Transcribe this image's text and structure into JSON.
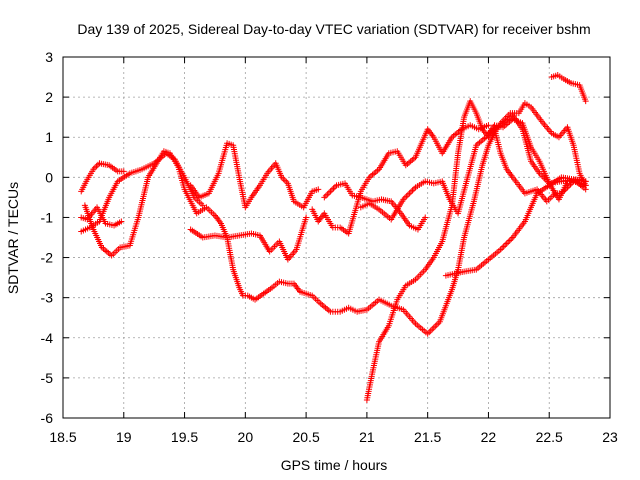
{
  "chart_data": {
    "type": "scatter",
    "title": "Day 139 of 2025, Sidereal Day-to-day VTEC variation (SDTVAR) for receiver bshm",
    "xlabel": "GPS time / hours",
    "ylabel": "SDTVAR / TECUs",
    "xlim": [
      18.5,
      23
    ],
    "ylim": [
      -6,
      3
    ],
    "xticks": [
      "18.5",
      "19",
      "19.5",
      "20",
      "20.5",
      "21",
      "21.5",
      "22",
      "22.5",
      "23"
    ],
    "yticks": [
      "-6",
      "-5",
      "-4",
      "-3",
      "-2",
      "-1",
      "0",
      "1",
      "2",
      "3"
    ],
    "grid": true,
    "marker": "+",
    "color": "#ff0000",
    "series": [
      {
        "name": "arc-1",
        "x": [
          18.65,
          18.72,
          18.8,
          18.88,
          18.95,
          19.05,
          19.15,
          19.25,
          19.35,
          19.42,
          19.5,
          19.58,
          19.65
        ],
        "y": [
          -1.35,
          -1.25,
          -1.1,
          -0.5,
          -0.1,
          0.1,
          0.2,
          0.35,
          0.6,
          0.45,
          0.0,
          -0.5,
          -0.7
        ]
      },
      {
        "name": "arc-2",
        "x": [
          18.65,
          18.7,
          18.75,
          18.8,
          18.88,
          18.95,
          19.0
        ],
        "y": [
          -0.35,
          -0.05,
          0.2,
          0.35,
          0.3,
          0.15,
          0.15
        ]
      },
      {
        "name": "arc-3",
        "x": [
          18.65,
          18.7,
          18.78,
          18.85,
          18.92,
          18.98
        ],
        "y": [
          -1.0,
          -1.05,
          -0.75,
          -1.15,
          -1.2,
          -1.1
        ]
      },
      {
        "name": "arc-4",
        "x": [
          18.68,
          18.75,
          18.82,
          18.9,
          18.97,
          19.05,
          19.12,
          19.2,
          19.28,
          19.33,
          19.38,
          19.45,
          19.5,
          19.55,
          19.6,
          19.68,
          19.75,
          19.8,
          19.85,
          19.9,
          19.95,
          19.98,
          20.02,
          20.08,
          20.15,
          20.22,
          20.28,
          20.35,
          20.4,
          20.45
        ],
        "y": [
          -0.7,
          -1.3,
          -1.75,
          -1.95,
          -1.75,
          -1.7,
          -1.0,
          0.0,
          0.4,
          0.65,
          0.6,
          0.25,
          -0.3,
          -0.6,
          -0.9,
          -0.75,
          -0.95,
          -1.15,
          -1.5,
          -2.3,
          -2.75,
          -2.95,
          -2.95,
          -3.05,
          -2.9,
          -2.75,
          -2.6,
          -2.65,
          -2.65,
          -2.85
        ]
      },
      {
        "name": "arc-5",
        "x": [
          19.55,
          19.65,
          19.75,
          19.85,
          19.95,
          20.05,
          20.12,
          20.2,
          20.28,
          20.35,
          20.42,
          20.5
        ],
        "y": [
          -1.3,
          -1.5,
          -1.45,
          -1.5,
          -1.45,
          -1.4,
          -1.45,
          -1.85,
          -1.6,
          -2.05,
          -1.8,
          -1.0
        ]
      },
      {
        "name": "arc-6",
        "x": [
          19.55,
          19.62,
          19.7,
          19.78,
          19.85,
          19.9,
          19.95,
          20.0,
          20.05,
          20.12,
          20.18,
          20.25,
          20.3,
          20.35,
          20.4,
          20.48,
          20.55,
          20.6
        ],
        "y": [
          -0.2,
          -0.5,
          -0.4,
          0.1,
          0.85,
          0.8,
          0.0,
          -0.75,
          -0.5,
          -0.2,
          0.1,
          0.35,
          0.0,
          -0.15,
          -0.6,
          -0.75,
          -0.35,
          -0.3
        ]
      },
      {
        "name": "arc-7",
        "x": [
          20.45,
          20.55,
          20.62,
          20.7,
          20.78,
          20.85,
          20.92,
          21.0,
          21.1,
          21.2,
          21.3,
          21.4,
          21.5,
          21.6,
          21.7,
          21.75,
          21.8,
          21.88,
          21.95,
          22.0,
          22.05,
          22.1,
          22.18,
          22.25,
          22.3,
          22.35,
          22.45,
          22.52,
          22.58,
          22.65,
          22.7,
          22.75,
          22.8
        ],
        "y": [
          -2.85,
          -2.95,
          -3.15,
          -3.35,
          -3.35,
          -3.25,
          -3.35,
          -3.3,
          -3.05,
          -3.2,
          -3.3,
          -3.65,
          -3.9,
          -3.6,
          -2.8,
          -2.3,
          -1.5,
          -0.6,
          0.3,
          0.8,
          1.1,
          1.35,
          1.6,
          1.6,
          1.85,
          1.75,
          1.35,
          1.1,
          1.0,
          1.25,
          0.8,
          0.1,
          -0.2
        ]
      },
      {
        "name": "arc-8",
        "x": [
          20.65,
          20.75,
          20.82,
          20.88,
          20.95,
          21.05,
          21.12,
          21.2,
          21.28,
          21.35,
          21.42,
          21.48
        ],
        "y": [
          -0.5,
          -0.2,
          -0.15,
          -0.45,
          -0.5,
          -0.6,
          -0.55,
          -0.6,
          -0.9,
          -1.2,
          -1.3,
          -1.0
        ]
      },
      {
        "name": "arc-9",
        "x": [
          20.55,
          20.6,
          20.65,
          20.72,
          20.78,
          20.85,
          20.95,
          21.02,
          21.1,
          21.18,
          21.25,
          21.32,
          21.4,
          21.5,
          21.55,
          21.62,
          21.7,
          21.78,
          21.85,
          21.92,
          22.0
        ],
        "y": [
          -0.8,
          -1.1,
          -0.9,
          -1.25,
          -1.25,
          -1.4,
          -0.35,
          0.0,
          0.2,
          0.6,
          0.65,
          0.3,
          0.5,
          1.2,
          1.0,
          0.6,
          1.0,
          1.2,
          1.3,
          1.2,
          1.3
        ]
      },
      {
        "name": "arc-10",
        "x": [
          21.0,
          21.05,
          21.1,
          21.18,
          21.25,
          21.32,
          21.4,
          21.48,
          21.55,
          21.62,
          21.7,
          21.75,
          21.8,
          21.85,
          21.9,
          21.95,
          22.0,
          22.05,
          22.1,
          22.15,
          22.2,
          22.3,
          22.4,
          22.48,
          22.55,
          22.6,
          22.7,
          22.8
        ],
        "y": [
          -5.55,
          -4.8,
          -4.1,
          -3.7,
          -3.05,
          -2.7,
          -2.55,
          -2.3,
          -2.0,
          -1.6,
          -0.7,
          0.6,
          1.5,
          1.9,
          1.6,
          1.2,
          1.0,
          1.2,
          0.6,
          0.2,
          0.0,
          -0.4,
          -0.3,
          -0.6,
          -0.4,
          -0.4,
          -0.1,
          -0.2
        ]
      },
      {
        "name": "arc-11",
        "x": [
          20.95,
          21.02,
          21.1,
          21.2,
          21.3,
          21.4,
          21.48,
          21.55,
          21.62,
          21.68,
          21.75,
          21.82,
          21.9,
          21.98,
          22.05,
          22.12,
          22.2,
          22.28,
          22.35,
          22.42,
          22.5,
          22.6,
          22.7,
          22.8
        ],
        "y": [
          -0.75,
          -0.65,
          -0.8,
          -1.05,
          -0.55,
          -0.25,
          -0.1,
          -0.15,
          -0.1,
          -0.55,
          -0.9,
          -0.1,
          0.8,
          1.0,
          1.3,
          1.25,
          1.45,
          1.35,
          0.75,
          0.4,
          -0.15,
          -0.1,
          -0.05,
          -0.3
        ]
      },
      {
        "name": "arc-12",
        "x": [
          21.65,
          21.72,
          21.8,
          21.9,
          22.0,
          22.1,
          22.2,
          22.3,
          22.4,
          22.5,
          22.6,
          22.7,
          22.8
        ],
        "y": [
          -2.45,
          -2.4,
          -2.35,
          -2.3,
          -2.05,
          -1.8,
          -1.5,
          -1.1,
          -0.4,
          -0.2,
          0.0,
          -0.05,
          -0.1
        ]
      },
      {
        "name": "arc-13",
        "x": [
          22.0,
          22.1,
          22.2,
          22.28,
          22.35,
          22.42,
          22.5,
          22.58,
          22.65,
          22.72,
          22.8
        ],
        "y": [
          1.1,
          1.3,
          1.55,
          1.2,
          0.4,
          0.1,
          -0.15,
          -0.55,
          -0.1,
          -0.05,
          -0.1
        ]
      },
      {
        "name": "arc-14",
        "x": [
          22.52,
          22.57,
          22.62,
          22.68,
          22.75,
          22.8
        ],
        "y": [
          2.5,
          2.55,
          2.45,
          2.35,
          2.3,
          1.9
        ]
      }
    ]
  }
}
